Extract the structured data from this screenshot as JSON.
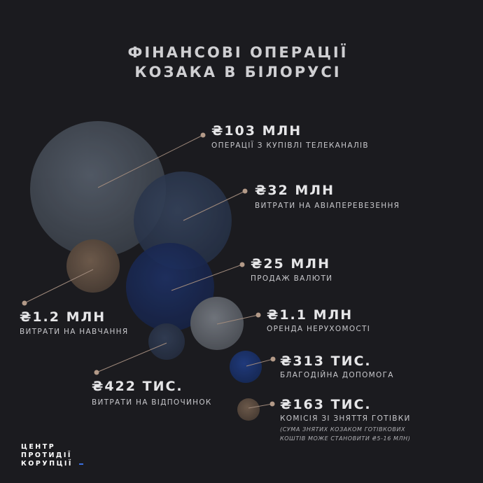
{
  "title": [
    "ФІНАНСОВІ ОПЕРАЦІЇ",
    "КОЗАКА В БІЛОРУСІ"
  ],
  "items": [
    {
      "amount": "₴103 МЛН",
      "description": "ОПЕРАЦІЇ З КУПІВЛІ ТЕЛЕКАНАЛІВ"
    },
    {
      "amount": "₴32 МЛН",
      "description": "ВИТРАТИ НА АВІАПЕРЕВЕЗЕННЯ"
    },
    {
      "amount": "₴25 МЛН",
      "description": "ПРОДАЖ ВАЛЮТИ"
    },
    {
      "amount": "₴1.2 МЛН",
      "description": "ВИТРАТИ НА НАВЧАННЯ"
    },
    {
      "amount": "₴1.1 МЛН",
      "description": "ОРЕНДА НЕРУХОМОСТІ"
    },
    {
      "amount": "₴422 ТИС.",
      "description": "ВИТРАТИ НА ВІДПОЧИНОК"
    },
    {
      "amount": "₴313 ТИС.",
      "description": "БЛАГОДІЙНА ДОПОМОГА"
    },
    {
      "amount": "₴163 ТИС.",
      "description": "КОМІСІЯ ЗІ ЗНЯТТЯ ГОТІВКИ",
      "note": [
        "(СУМА ЗНЯТИХ КОЗАКОМ ГОТІВКОВИХ",
        "КОШТІВ МОЖЕ СТАНОВИТИ ₴5-16 МЛН)"
      ]
    }
  ],
  "logo": [
    "ЦЕНТР",
    "ПРОТИДІЇ",
    "КОРУПЦІЇ"
  ]
}
